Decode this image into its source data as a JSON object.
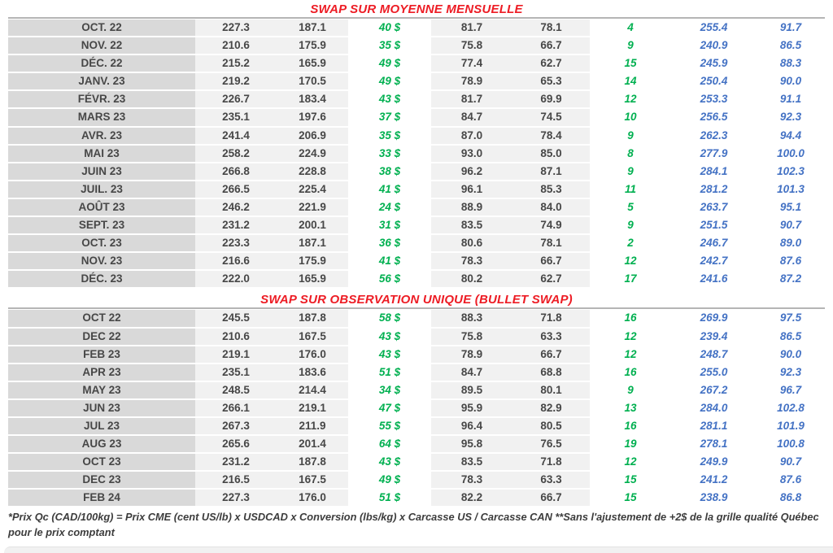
{
  "colors": {
    "title_red": "#ED1C24",
    "swap_green": "#00B050",
    "price_blue": "#4472C4",
    "number_gray": "#474747",
    "month_column_bg": "#d9d9d9",
    "band_bg": "#f1f1f1"
  },
  "table1": {
    "title": "SWAP SUR MOYENNE MENSUELLE",
    "rows": [
      [
        "OCT. 22",
        "227.3",
        "187.1",
        "40 $",
        "81.7",
        "78.1",
        "4",
        "255.4",
        "91.7"
      ],
      [
        "NOV. 22",
        "210.6",
        "175.9",
        "35 $",
        "75.8",
        "66.7",
        "9",
        "240.9",
        "86.5"
      ],
      [
        "DÉC. 22",
        "215.2",
        "165.9",
        "49 $",
        "77.4",
        "62.7",
        "15",
        "245.9",
        "88.3"
      ],
      [
        "JANV. 23",
        "219.2",
        "170.5",
        "49 $",
        "78.9",
        "65.3",
        "14",
        "250.4",
        "90.0"
      ],
      [
        "FÉVR. 23",
        "226.7",
        "183.4",
        "43 $",
        "81.7",
        "69.9",
        "12",
        "253.3",
        "91.1"
      ],
      [
        "MARS 23",
        "235.1",
        "197.6",
        "37 $",
        "84.7",
        "74.5",
        "10",
        "256.5",
        "92.3"
      ],
      [
        "AVR. 23",
        "241.4",
        "206.9",
        "35 $",
        "87.0",
        "78.4",
        "9",
        "262.3",
        "94.4"
      ],
      [
        "MAI 23",
        "258.2",
        "224.9",
        "33 $",
        "93.0",
        "85.0",
        "8",
        "277.9",
        "100.0"
      ],
      [
        "JUIN 23",
        "266.8",
        "228.8",
        "38 $",
        "96.2",
        "87.1",
        "9",
        "284.1",
        "102.3"
      ],
      [
        "JUIL. 23",
        "266.5",
        "225.4",
        "41 $",
        "96.1",
        "85.3",
        "11",
        "281.2",
        "101.3"
      ],
      [
        "AOÛT 23",
        "246.2",
        "221.9",
        "24 $",
        "88.9",
        "84.0",
        "5",
        "263.7",
        "95.1"
      ],
      [
        "SEPT. 23",
        "231.2",
        "200.1",
        "31 $",
        "83.5",
        "74.9",
        "9",
        "251.5",
        "90.7"
      ],
      [
        "OCT. 23",
        "223.3",
        "187.1",
        "36 $",
        "80.6",
        "78.1",
        "2",
        "246.7",
        "89.0"
      ],
      [
        "NOV. 23",
        "216.6",
        "175.9",
        "41 $",
        "78.3",
        "66.7",
        "12",
        "242.7",
        "87.6"
      ],
      [
        "DÉC. 23",
        "222.0",
        "165.9",
        "56 $",
        "80.2",
        "62.7",
        "17",
        "241.6",
        "87.2"
      ]
    ]
  },
  "table2": {
    "title": "SWAP SUR OBSERVATION UNIQUE (BULLET SWAP)",
    "rows": [
      [
        "OCT 22",
        "245.5",
        "187.8",
        "58 $",
        "88.3",
        "71.8",
        "16",
        "269.9",
        "97.5"
      ],
      [
        "DEC 22",
        "210.6",
        "167.5",
        "43 $",
        "75.8",
        "63.3",
        "12",
        "239.4",
        "86.5"
      ],
      [
        "FEB 23",
        "219.1",
        "176.0",
        "43 $",
        "78.9",
        "66.7",
        "12",
        "248.7",
        "90.0"
      ],
      [
        "APR 23",
        "235.1",
        "183.6",
        "51 $",
        "84.7",
        "68.8",
        "16",
        "255.0",
        "92.3"
      ],
      [
        "MAY 23",
        "248.5",
        "214.4",
        "34 $",
        "89.5",
        "80.1",
        "9",
        "267.2",
        "96.7"
      ],
      [
        "JUN 23",
        "266.1",
        "219.1",
        "47 $",
        "95.9",
        "82.9",
        "13",
        "284.0",
        "102.8"
      ],
      [
        "JUL 23",
        "267.3",
        "211.9",
        "55 $",
        "96.4",
        "80.5",
        "16",
        "281.1",
        "101.9"
      ],
      [
        "AUG 23",
        "265.6",
        "201.4",
        "64 $",
        "95.8",
        "76.5",
        "19",
        "278.1",
        "100.8"
      ],
      [
        "OCT 23",
        "231.2",
        "187.8",
        "43 $",
        "83.5",
        "71.8",
        "12",
        "249.9",
        "90.7"
      ],
      [
        "DEC 23",
        "216.5",
        "167.5",
        "49 $",
        "78.3",
        "63.3",
        "15",
        "241.2",
        "87.6"
      ],
      [
        "FEB 24",
        "227.3",
        "176.0",
        "51 $",
        "82.2",
        "66.7",
        "15",
        "238.9",
        "86.8"
      ]
    ]
  },
  "footnote": "*Prix Qc (CAD/100kg) = Prix CME (cent US/lb) x USDCAD x Conversion (lbs/kg) x Carcasse US / Carcasse CAN **Sans l'ajustement de +2$ de la grille qualité Québec pour le prix comptant"
}
